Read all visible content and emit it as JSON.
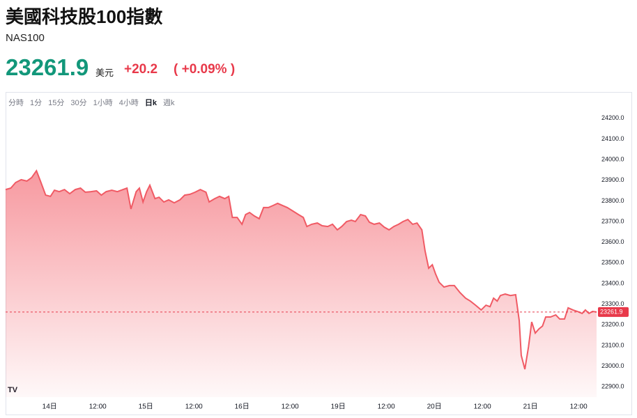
{
  "header": {
    "title": "美國科技股100指數",
    "symbol": "NAS100",
    "currency": "美元",
    "change": "+20.2",
    "change_percent": "( +0.09% )"
  },
  "tabs": [
    "分時",
    "1分",
    "15分",
    "30分",
    "1小時",
    "4小時",
    "日k",
    "週k"
  ],
  "active_tab": 6,
  "chart_data": {
    "type": "area",
    "color": "#f05a64",
    "x": [
      -11.0,
      -9.7,
      -8.5,
      -7.1,
      -5.7,
      -4.5,
      -3.3,
      -2.3,
      -1.0,
      0.2,
      1.2,
      2.4,
      3.7,
      5.0,
      6.4,
      7.7,
      8.9,
      10.3,
      11.7,
      12.9,
      14.1,
      15.5,
      16.9,
      18.3,
      19.3,
      20.3,
      21.6,
      22.4,
      23.3,
      24.2,
      25.0,
      26.3,
      27.3,
      28.5,
      29.7,
      31.1,
      32.5,
      33.7,
      35.0,
      36.3,
      37.6,
      39.0,
      39.8,
      41.2,
      42.4,
      43.7,
      44.7,
      45.6,
      46.8,
      48.0,
      48.9,
      49.9,
      51.1,
      52.3,
      53.4,
      54.6,
      55.8,
      56.9,
      58.1,
      59.3,
      60.7,
      62.1,
      63.3,
      64.2,
      65.4,
      66.8,
      68.0,
      69.4,
      70.6,
      71.8,
      72.9,
      74.1,
      75.3,
      76.3,
      77.6,
      78.8,
      79.8,
      81.0,
      82.3,
      83.5,
      84.7,
      85.9,
      87.1,
      88.2,
      89.4,
      90.6,
      91.7,
      92.9,
      93.7,
      94.6,
      95.5,
      96.3,
      97.2,
      98.4,
      99.8,
      101.0,
      102.4,
      103.8,
      105.0,
      106.3,
      107.7,
      108.9,
      109.9,
      110.8,
      111.7,
      112.5,
      113.7,
      115.0,
      116.3,
      117.2,
      117.7,
      118.6,
      119.5,
      120.3,
      121.2,
      122.1,
      123.0,
      123.8,
      125.0,
      126.3,
      127.3,
      128.5,
      129.4,
      130.6,
      131.7,
      132.9,
      133.7,
      134.6,
      135.5,
      136.5
    ],
    "values": [
      23855,
      23862,
      23889,
      23903,
      23896,
      23913,
      23946,
      23896,
      23828,
      23822,
      23852,
      23845,
      23855,
      23835,
      23855,
      23862,
      23842,
      23845,
      23849,
      23828,
      23845,
      23852,
      23845,
      23855,
      23862,
      23761,
      23845,
      23862,
      23795,
      23845,
      23876,
      23811,
      23818,
      23795,
      23805,
      23791,
      23805,
      23828,
      23832,
      23842,
      23855,
      23842,
      23795,
      23811,
      23822,
      23811,
      23822,
      23720,
      23720,
      23687,
      23734,
      23744,
      23727,
      23714,
      23768,
      23768,
      23778,
      23788,
      23778,
      23768,
      23751,
      23734,
      23720,
      23676,
      23687,
      23693,
      23680,
      23676,
      23687,
      23660,
      23676,
      23700,
      23707,
      23700,
      23734,
      23727,
      23697,
      23687,
      23693,
      23673,
      23660,
      23676,
      23687,
      23700,
      23710,
      23687,
      23693,
      23660,
      23558,
      23474,
      23491,
      23447,
      23406,
      23383,
      23390,
      23390,
      23356,
      23329,
      23315,
      23295,
      23272,
      23295,
      23288,
      23329,
      23315,
      23342,
      23349,
      23342,
      23346,
      23221,
      23052,
      22985,
      23093,
      23214,
      23160,
      23180,
      23194,
      23238,
      23238,
      23248,
      23228,
      23228,
      23282,
      23272,
      23265,
      23255,
      23272,
      23255,
      23265,
      23261.9
    ],
    "last_value": 23261.9,
    "xlim": [
      -11,
      136.5
    ],
    "xticks": [
      {
        "value": 0,
        "label": "14日"
      },
      {
        "value": 12,
        "label": "12:00"
      },
      {
        "value": 24,
        "label": "15日"
      },
      {
        "value": 36,
        "label": "12:00"
      },
      {
        "value": 48,
        "label": "16日"
      },
      {
        "value": 60,
        "label": "12:00"
      },
      {
        "value": 72,
        "label": "19日"
      },
      {
        "value": 84,
        "label": "12:00"
      },
      {
        "value": 96,
        "label": "20日"
      },
      {
        "value": 108,
        "label": "12:00"
      },
      {
        "value": 120,
        "label": "21日"
      },
      {
        "value": 132,
        "label": "12:00"
      }
    ],
    "ylim": [
      22850,
      24250
    ],
    "yticks": [
      {
        "value": 22900,
        "label": "22900.0"
      },
      {
        "value": 23000,
        "label": "23000.0"
      },
      {
        "value": 23100,
        "label": "23100.0"
      },
      {
        "value": 23200,
        "label": "23200.0"
      },
      {
        "value": 23300,
        "label": "23300.0"
      },
      {
        "value": 23400,
        "label": "23400.0"
      },
      {
        "value": 23500,
        "label": "23500.0"
      },
      {
        "value": 23600,
        "label": "23600.0"
      },
      {
        "value": 23700,
        "label": "23700.0"
      },
      {
        "value": 23800,
        "label": "23800.0"
      },
      {
        "value": 23900,
        "label": "23900.0"
      },
      {
        "value": 24000,
        "label": "24000.0"
      },
      {
        "value": 24100,
        "label": "24100.0"
      },
      {
        "value": 24200,
        "label": "24200.0"
      }
    ]
  }
}
